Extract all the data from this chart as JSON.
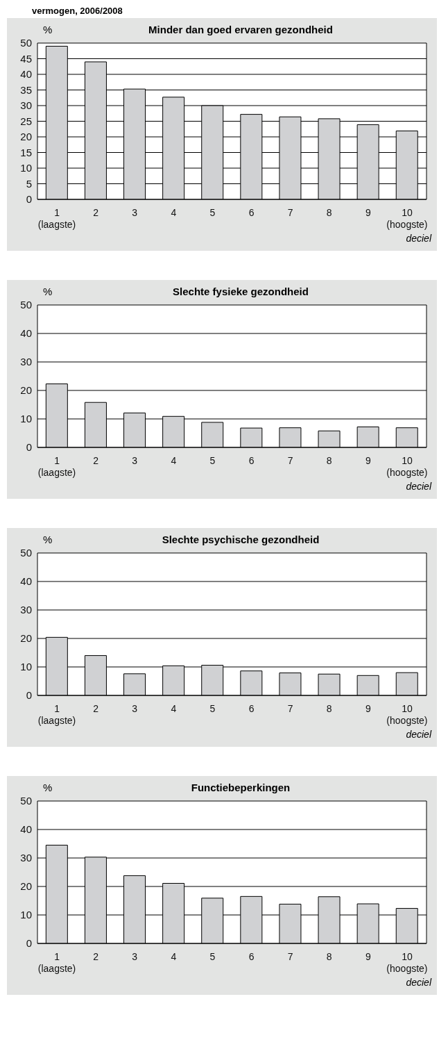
{
  "chart_data": [
    {
      "type": "bar",
      "title": "Minder dan goed ervaren gezondheid",
      "annotations": [
        "vermogen, 2006/2008"
      ],
      "ylabel": "%",
      "xlabel": "deciel",
      "categories": [
        "1\n(laagste)",
        "2",
        "3",
        "4",
        "5",
        "6",
        "7",
        "8",
        "9",
        "10\n(hoogste)"
      ],
      "values": [
        49,
        44,
        35.3,
        32.7,
        30,
        27.2,
        26.4,
        25.8,
        23.9,
        21.9
      ],
      "color": "#d0d1d3",
      "ylim": [
        0,
        50
      ],
      "yticks": [
        0,
        5,
        10,
        15,
        20,
        25,
        30,
        35,
        40,
        45,
        50
      ],
      "grid": "y",
      "legend": false
    },
    {
      "type": "bar",
      "title": "Slechte fysieke gezondheid",
      "ylabel": "%",
      "xlabel": "deciel",
      "categories": [
        "1\n(laagste)",
        "2",
        "3",
        "4",
        "5",
        "6",
        "7",
        "8",
        "9",
        "10\n(hoogste)"
      ],
      "values": [
        22.3,
        15.8,
        12.1,
        10.9,
        8.8,
        6.8,
        6.9,
        5.8,
        7.2,
        6.9
      ],
      "color": "#d0d1d3",
      "ylim": [
        0,
        50
      ],
      "yticks": [
        0,
        10,
        20,
        30,
        40,
        50
      ],
      "grid": "y",
      "legend": false
    },
    {
      "type": "bar",
      "title": "Slechte psychische gezondheid",
      "ylabel": "%",
      "xlabel": "deciel",
      "categories": [
        "1\n(laagste)",
        "2",
        "3",
        "4",
        "5",
        "6",
        "7",
        "8",
        "9",
        "10\n(hoogste)"
      ],
      "values": [
        20.4,
        14,
        7.6,
        10.4,
        10.6,
        8.6,
        7.9,
        7.5,
        7,
        8
      ],
      "color": "#d0d1d3",
      "ylim": [
        0,
        50
      ],
      "yticks": [
        0,
        10,
        20,
        30,
        40,
        50
      ],
      "grid": "y",
      "legend": false
    },
    {
      "type": "bar",
      "title": "Functiebeperkingen",
      "ylabel": "%",
      "xlabel": "deciel",
      "categories": [
        "1\n(laagste)",
        "2",
        "3",
        "4",
        "5",
        "6",
        "7",
        "8",
        "9",
        "10\n(hoogste)"
      ],
      "values": [
        34.5,
        30.3,
        23.8,
        21.1,
        15.9,
        16.5,
        13.8,
        16.4,
        13.9,
        12.3
      ],
      "color": "#d0d1d3",
      "ylim": [
        0,
        50
      ],
      "yticks": [
        0,
        10,
        20,
        30,
        40,
        50
      ],
      "grid": "y",
      "legend": false
    }
  ]
}
